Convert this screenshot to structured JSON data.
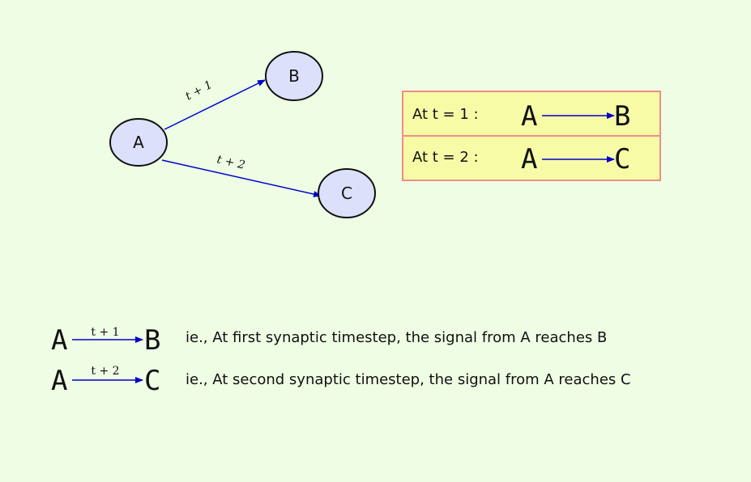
{
  "graph": {
    "nodes": [
      {
        "id": "A",
        "label": "A"
      },
      {
        "id": "B",
        "label": "B"
      },
      {
        "id": "C",
        "label": "C"
      }
    ],
    "edges": [
      {
        "from": "A",
        "to": "B",
        "label": "t + 1"
      },
      {
        "from": "A",
        "to": "C",
        "label": "t + 2"
      }
    ],
    "colors": {
      "node_fill": "#dde0fb",
      "edge": "#0000cc"
    }
  },
  "box": {
    "rows": [
      {
        "prefix": "At t = 1 :",
        "from": "A",
        "to": "B"
      },
      {
        "prefix": "At t = 2 :",
        "from": "A",
        "to": "C"
      }
    ],
    "colors": {
      "fill": "#f8fba6",
      "border": "#ef8e86"
    }
  },
  "legend": {
    "rows": [
      {
        "from": "A",
        "to": "B",
        "label": "t + 1",
        "text": "ie., At first synaptic timestep, the signal from A reaches B"
      },
      {
        "from": "A",
        "to": "C",
        "label": "t + 2",
        "text": "ie., At second synaptic timestep, the signal from A reaches C"
      }
    ]
  }
}
